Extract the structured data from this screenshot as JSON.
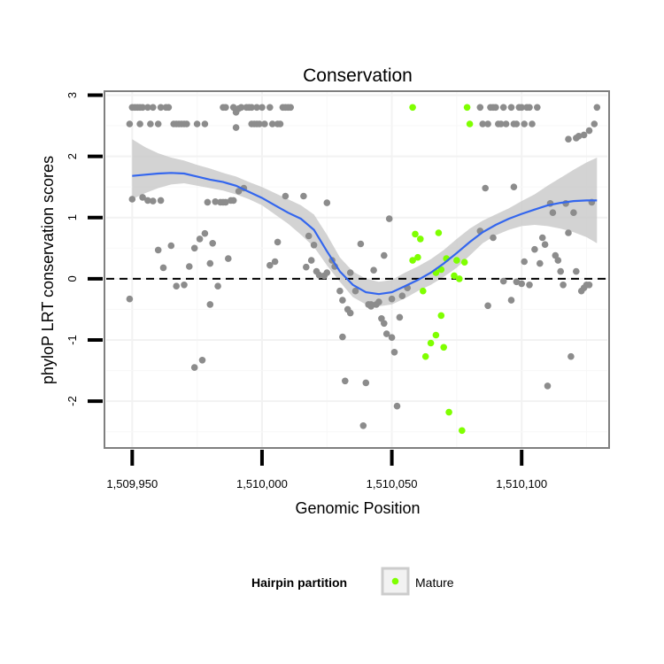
{
  "chart_data": {
    "type": "scatter",
    "title": "Conservation",
    "xlabel": "Genomic Position",
    "ylabel": "phyloP LRT conservation scores",
    "xlim": [
      1509940,
      1510133
    ],
    "ylim": [
      -2.75,
      3.05
    ],
    "x_ticks": [
      1509950,
      1510000,
      1510050,
      1510100
    ],
    "x_tick_labels": [
      "1,509,950",
      "1,510,000",
      "1,510,050",
      "1,510,100"
    ],
    "y_ticks": [
      -2,
      -1,
      0,
      1,
      2,
      3
    ],
    "y_tick_labels": [
      "-2",
      "-1",
      "0",
      "1",
      "2",
      "3"
    ],
    "reference_line": {
      "y": 0,
      "style": "dashed"
    },
    "legend": {
      "title": "Hairpin partition",
      "position": "bottom",
      "entries": [
        {
          "label": "Mature",
          "color": "#7fff00"
        }
      ]
    },
    "colors": {
      "other": "#8c8c8c",
      "mature": "#7fff00",
      "smooth": "#3366ee",
      "band": "#c8c8c8"
    },
    "series": [
      {
        "name": "Other",
        "points": [
          [
            1509949,
            2.53
          ],
          [
            1509950,
            2.8
          ],
          [
            1509951,
            2.8
          ],
          [
            1509952,
            2.8
          ],
          [
            1509953,
            2.8
          ],
          [
            1509953,
            2.53
          ],
          [
            1509954,
            2.8
          ],
          [
            1509956,
            2.8
          ],
          [
            1509957,
            2.53
          ],
          [
            1509958,
            2.8
          ],
          [
            1509960,
            2.53
          ],
          [
            1509961,
            2.8
          ],
          [
            1509963,
            2.8
          ],
          [
            1509964,
            2.8
          ],
          [
            1509966,
            2.53
          ],
          [
            1509967,
            2.53
          ],
          [
            1509968,
            2.53
          ],
          [
            1509969,
            2.53
          ],
          [
            1509970,
            2.53
          ],
          [
            1509971,
            2.53
          ],
          [
            1509975,
            2.53
          ],
          [
            1509978,
            2.53
          ],
          [
            1509985,
            2.8
          ],
          [
            1509986,
            2.8
          ],
          [
            1509989,
            2.8
          ],
          [
            1509990,
            2.72
          ],
          [
            1509991,
            2.78
          ],
          [
            1509992,
            2.8
          ],
          [
            1509994,
            2.8
          ],
          [
            1509995,
            2.8
          ],
          [
            1509996,
            2.53
          ],
          [
            1509996,
            2.8
          ],
          [
            1509997,
            2.53
          ],
          [
            1509998,
            2.8
          ],
          [
            1509998,
            2.53
          ],
          [
            1509999,
            2.53
          ],
          [
            1510000,
            2.8
          ],
          [
            1510001,
            2.53
          ],
          [
            1510003,
            2.8
          ],
          [
            1510004,
            2.53
          ],
          [
            1510006,
            2.53
          ],
          [
            1510007,
            2.53
          ],
          [
            1510008,
            2.8
          ],
          [
            1510009,
            2.8
          ],
          [
            1510010,
            2.8
          ],
          [
            1510011,
            2.8
          ],
          [
            1510084,
            2.8
          ],
          [
            1510085,
            2.53
          ],
          [
            1510087,
            2.53
          ],
          [
            1510088,
            2.8
          ],
          [
            1510089,
            2.8
          ],
          [
            1510090,
            2.8
          ],
          [
            1510091,
            2.53
          ],
          [
            1510092,
            2.53
          ],
          [
            1510093,
            2.8
          ],
          [
            1510094,
            2.53
          ],
          [
            1510096,
            2.8
          ],
          [
            1510097,
            2.53
          ],
          [
            1510098,
            2.53
          ],
          [
            1510099,
            2.8
          ],
          [
            1510100,
            2.8
          ],
          [
            1510101,
            2.53
          ],
          [
            1510102,
            2.8
          ],
          [
            1510103,
            2.8
          ],
          [
            1510104,
            2.53
          ],
          [
            1510106,
            2.8
          ],
          [
            1510129,
            2.8
          ],
          [
            1510128,
            2.53
          ],
          [
            1510126,
            2.42
          ],
          [
            1510124,
            2.35
          ],
          [
            1510121,
            2.3
          ],
          [
            1510118,
            2.28
          ],
          [
            1509990,
            2.47
          ],
          [
            1509949,
            -0.33
          ],
          [
            1509950,
            1.3
          ],
          [
            1509954,
            1.33
          ],
          [
            1509956,
            1.28
          ],
          [
            1509958,
            1.27
          ],
          [
            1509961,
            1.28
          ],
          [
            1509960,
            0.47
          ],
          [
            1509962,
            0.18
          ],
          [
            1509965,
            0.54
          ],
          [
            1509967,
            -0.12
          ],
          [
            1509970,
            -0.1
          ],
          [
            1509972,
            0.2
          ],
          [
            1509974,
            0.5
          ],
          [
            1509974,
            -1.45
          ],
          [
            1509976,
            0.65
          ],
          [
            1509977,
            -1.33
          ],
          [
            1509978,
            0.74
          ],
          [
            1509979,
            1.25
          ],
          [
            1509980,
            -0.42
          ],
          [
            1509980,
            0.25
          ],
          [
            1509981,
            0.58
          ],
          [
            1509982,
            1.26
          ],
          [
            1509983,
            -0.12
          ],
          [
            1509984,
            1.25
          ],
          [
            1509985,
            1.25
          ],
          [
            1509986,
            1.25
          ],
          [
            1509987,
            0.33
          ],
          [
            1509988,
            1.28
          ],
          [
            1509989,
            1.28
          ],
          [
            1509991,
            1.43
          ],
          [
            1509993,
            1.48
          ],
          [
            1510003,
            0.22
          ],
          [
            1510005,
            0.28
          ],
          [
            1510006,
            0.6
          ],
          [
            1510009,
            1.35
          ],
          [
            1510016,
            1.35
          ],
          [
            1510017,
            0.19
          ],
          [
            1510018,
            0.7
          ],
          [
            1510019,
            0.3
          ],
          [
            1510020,
            0.55
          ],
          [
            1510021,
            0.12
          ],
          [
            1510022,
            0.06
          ],
          [
            1510024,
            0.05
          ],
          [
            1510025,
            0.1
          ],
          [
            1510025,
            1.24
          ],
          [
            1510027,
            0.3
          ],
          [
            1510028,
            0.2
          ],
          [
            1510030,
            -0.2
          ],
          [
            1510031,
            -0.35
          ],
          [
            1510031,
            -0.95
          ],
          [
            1510032,
            -1.67
          ],
          [
            1510033,
            -0.5
          ],
          [
            1510034,
            -0.56
          ],
          [
            1510034,
            0.1
          ],
          [
            1510036,
            -0.2
          ],
          [
            1510038,
            0.57
          ],
          [
            1510039,
            -2.4
          ],
          [
            1510040,
            -1.7
          ],
          [
            1510041,
            -0.42
          ],
          [
            1510042,
            -0.45
          ],
          [
            1510042,
            -0.42
          ],
          [
            1510043,
            0.14
          ],
          [
            1510044,
            -0.42
          ],
          [
            1510045,
            -0.38
          ],
          [
            1510046,
            -0.65
          ],
          [
            1510047,
            0.38
          ],
          [
            1510047,
            -0.73
          ],
          [
            1510048,
            -0.9
          ],
          [
            1510049,
            0.98
          ],
          [
            1510050,
            -0.33
          ],
          [
            1510050,
            -0.96
          ],
          [
            1510051,
            -1.2
          ],
          [
            1510052,
            -2.08
          ],
          [
            1510053,
            -0.63
          ],
          [
            1510054,
            -0.28
          ],
          [
            1510056,
            -0.15
          ],
          [
            1510084,
            0.78
          ],
          [
            1510086,
            1.48
          ],
          [
            1510087,
            -0.44
          ],
          [
            1510089,
            0.67
          ],
          [
            1510093,
            -0.04
          ],
          [
            1510096,
            -0.35
          ],
          [
            1510097,
            1.5
          ],
          [
            1510098,
            -0.05
          ],
          [
            1510100,
            -0.08
          ],
          [
            1510101,
            0.28
          ],
          [
            1510103,
            -0.1
          ],
          [
            1510105,
            0.48
          ],
          [
            1510107,
            0.25
          ],
          [
            1510108,
            0.67
          ],
          [
            1510109,
            0.56
          ],
          [
            1510110,
            -1.75
          ],
          [
            1510111,
            1.23
          ],
          [
            1510112,
            1.08
          ],
          [
            1510113,
            0.38
          ],
          [
            1510114,
            0.3
          ],
          [
            1510115,
            0.12
          ],
          [
            1510116,
            -0.1
          ],
          [
            1510117,
            1.23
          ],
          [
            1510118,
            0.75
          ],
          [
            1510119,
            -1.27
          ],
          [
            1510120,
            1.08
          ],
          [
            1510121,
            0.12
          ],
          [
            1510122,
            2.33
          ],
          [
            1510123,
            -0.2
          ],
          [
            1510124,
            -0.15
          ],
          [
            1510125,
            -0.1
          ],
          [
            1510126,
            -0.1
          ],
          [
            1510127,
            1.25
          ]
        ]
      },
      {
        "name": "Mature",
        "points": [
          [
            1510058,
            2.8
          ],
          [
            1510079,
            2.8
          ],
          [
            1510080,
            2.53
          ],
          [
            1510058,
            0.3
          ],
          [
            1510059,
            0.73
          ],
          [
            1510060,
            0.35
          ],
          [
            1510061,
            0.65
          ],
          [
            1510062,
            -0.2
          ],
          [
            1510063,
            -1.27
          ],
          [
            1510065,
            -1.05
          ],
          [
            1510067,
            0.1
          ],
          [
            1510067,
            -0.92
          ],
          [
            1510068,
            0.75
          ],
          [
            1510069,
            0.15
          ],
          [
            1510069,
            -0.6
          ],
          [
            1510070,
            -1.12
          ],
          [
            1510071,
            0.33
          ],
          [
            1510072,
            -2.18
          ],
          [
            1510074,
            0.05
          ],
          [
            1510075,
            0.3
          ],
          [
            1510076,
            0.0
          ],
          [
            1510077,
            -2.48
          ],
          [
            1510078,
            0.27
          ]
        ]
      }
    ],
    "smooth": {
      "x": [
        1509950,
        1509955,
        1509960,
        1509965,
        1509970,
        1509975,
        1509980,
        1509985,
        1509990,
        1509995,
        1510000,
        1510005,
        1510010,
        1510015,
        1510020,
        1510025,
        1510030,
        1510035,
        1510040,
        1510045,
        1510050,
        1510055,
        1510060,
        1510065,
        1510070,
        1510075,
        1510080,
        1510085,
        1510090,
        1510095,
        1510100,
        1510105,
        1510110,
        1510115,
        1510120,
        1510125,
        1510129
      ],
      "y": [
        1.68,
        1.7,
        1.72,
        1.73,
        1.72,
        1.67,
        1.62,
        1.58,
        1.52,
        1.42,
        1.32,
        1.2,
        1.08,
        0.98,
        0.8,
        0.45,
        0.12,
        -0.1,
        -0.22,
        -0.25,
        -0.22,
        -0.12,
        -0.02,
        0.1,
        0.25,
        0.42,
        0.6,
        0.76,
        0.88,
        0.98,
        1.06,
        1.13,
        1.2,
        1.24,
        1.27,
        1.28,
        1.28
      ],
      "lower": [
        1.3,
        1.4,
        1.48,
        1.54,
        1.56,
        1.52,
        1.48,
        1.44,
        1.38,
        1.3,
        1.2,
        1.05,
        0.9,
        0.72,
        0.52,
        0.22,
        -0.05,
        -0.3,
        -0.42,
        -0.45,
        -0.42,
        -0.32,
        -0.2,
        -0.1,
        0.03,
        0.18,
        0.38,
        0.58,
        0.71,
        0.8,
        0.86,
        0.88,
        0.86,
        0.82,
        0.76,
        0.68,
        0.58
      ],
      "upper": [
        2.28,
        2.15,
        2.05,
        1.98,
        1.93,
        1.86,
        1.8,
        1.73,
        1.67,
        1.58,
        1.5,
        1.4,
        1.3,
        1.2,
        1.05,
        0.72,
        0.35,
        0.12,
        0.0,
        -0.05,
        -0.02,
        0.1,
        0.2,
        0.32,
        0.47,
        0.65,
        0.82,
        0.95,
        1.05,
        1.15,
        1.27,
        1.38,
        1.52,
        1.65,
        1.78,
        1.9,
        1.98
      ]
    }
  }
}
